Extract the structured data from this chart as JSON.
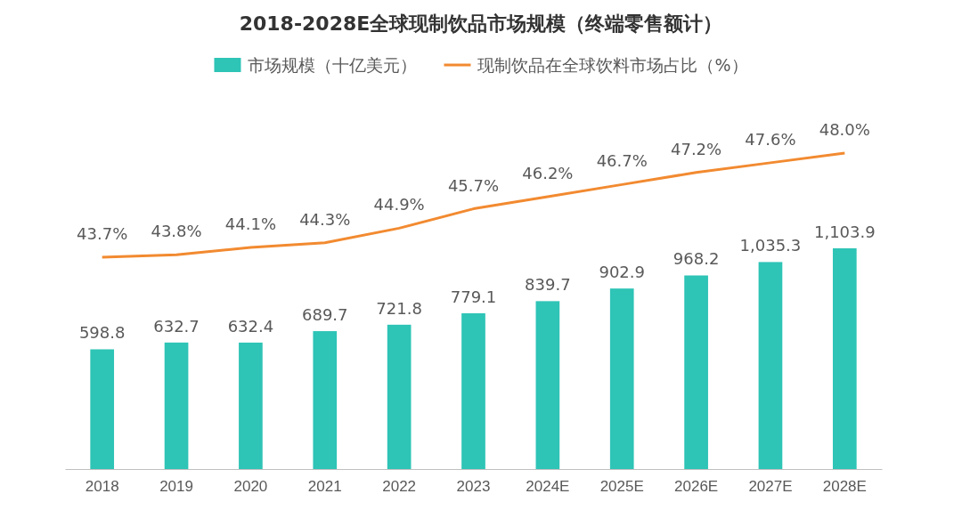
{
  "chart_data": {
    "type": "bar",
    "title": "2018-2028E全球现制饮品市场规模（终端零售额计）",
    "categories": [
      "2018",
      "2019",
      "2020",
      "2021",
      "2022",
      "2023",
      "2024E",
      "2025E",
      "2026E",
      "2027E",
      "2028E"
    ],
    "tick_labels": "x",
    "legend": "top",
    "series": [
      {
        "name": "市场规模（十亿美元）",
        "color": "#2ec4b6",
        "values": [
          598.8,
          632.7,
          632.4,
          689.7,
          721.8,
          779.1,
          839.7,
          902.9,
          968.2,
          1035.3,
          1103.9
        ],
        "value_labels": [
          "598.8",
          "632.7",
          "632.4",
          "689.7",
          "721.8",
          "779.1",
          "839.7",
          "902.9",
          "968.2",
          "1,035.3",
          "1,103.9"
        ]
      },
      {
        "name": "现制饮品在全球饮料市场占比（%）",
        "type": "line",
        "axis": "y2",
        "color": "#f28a30",
        "marker": "none",
        "line_style": "solid",
        "values": [
          43.7,
          43.8,
          44.1,
          44.3,
          44.9,
          45.7,
          46.2,
          46.7,
          47.2,
          47.6,
          48.0
        ],
        "value_labels": [
          "43.7%",
          "43.8%",
          "44.1%",
          "44.3%",
          "44.9%",
          "45.7%",
          "46.2%",
          "46.7%",
          "47.2%",
          "47.6%",
          "48.0%"
        ]
      }
    ]
  }
}
